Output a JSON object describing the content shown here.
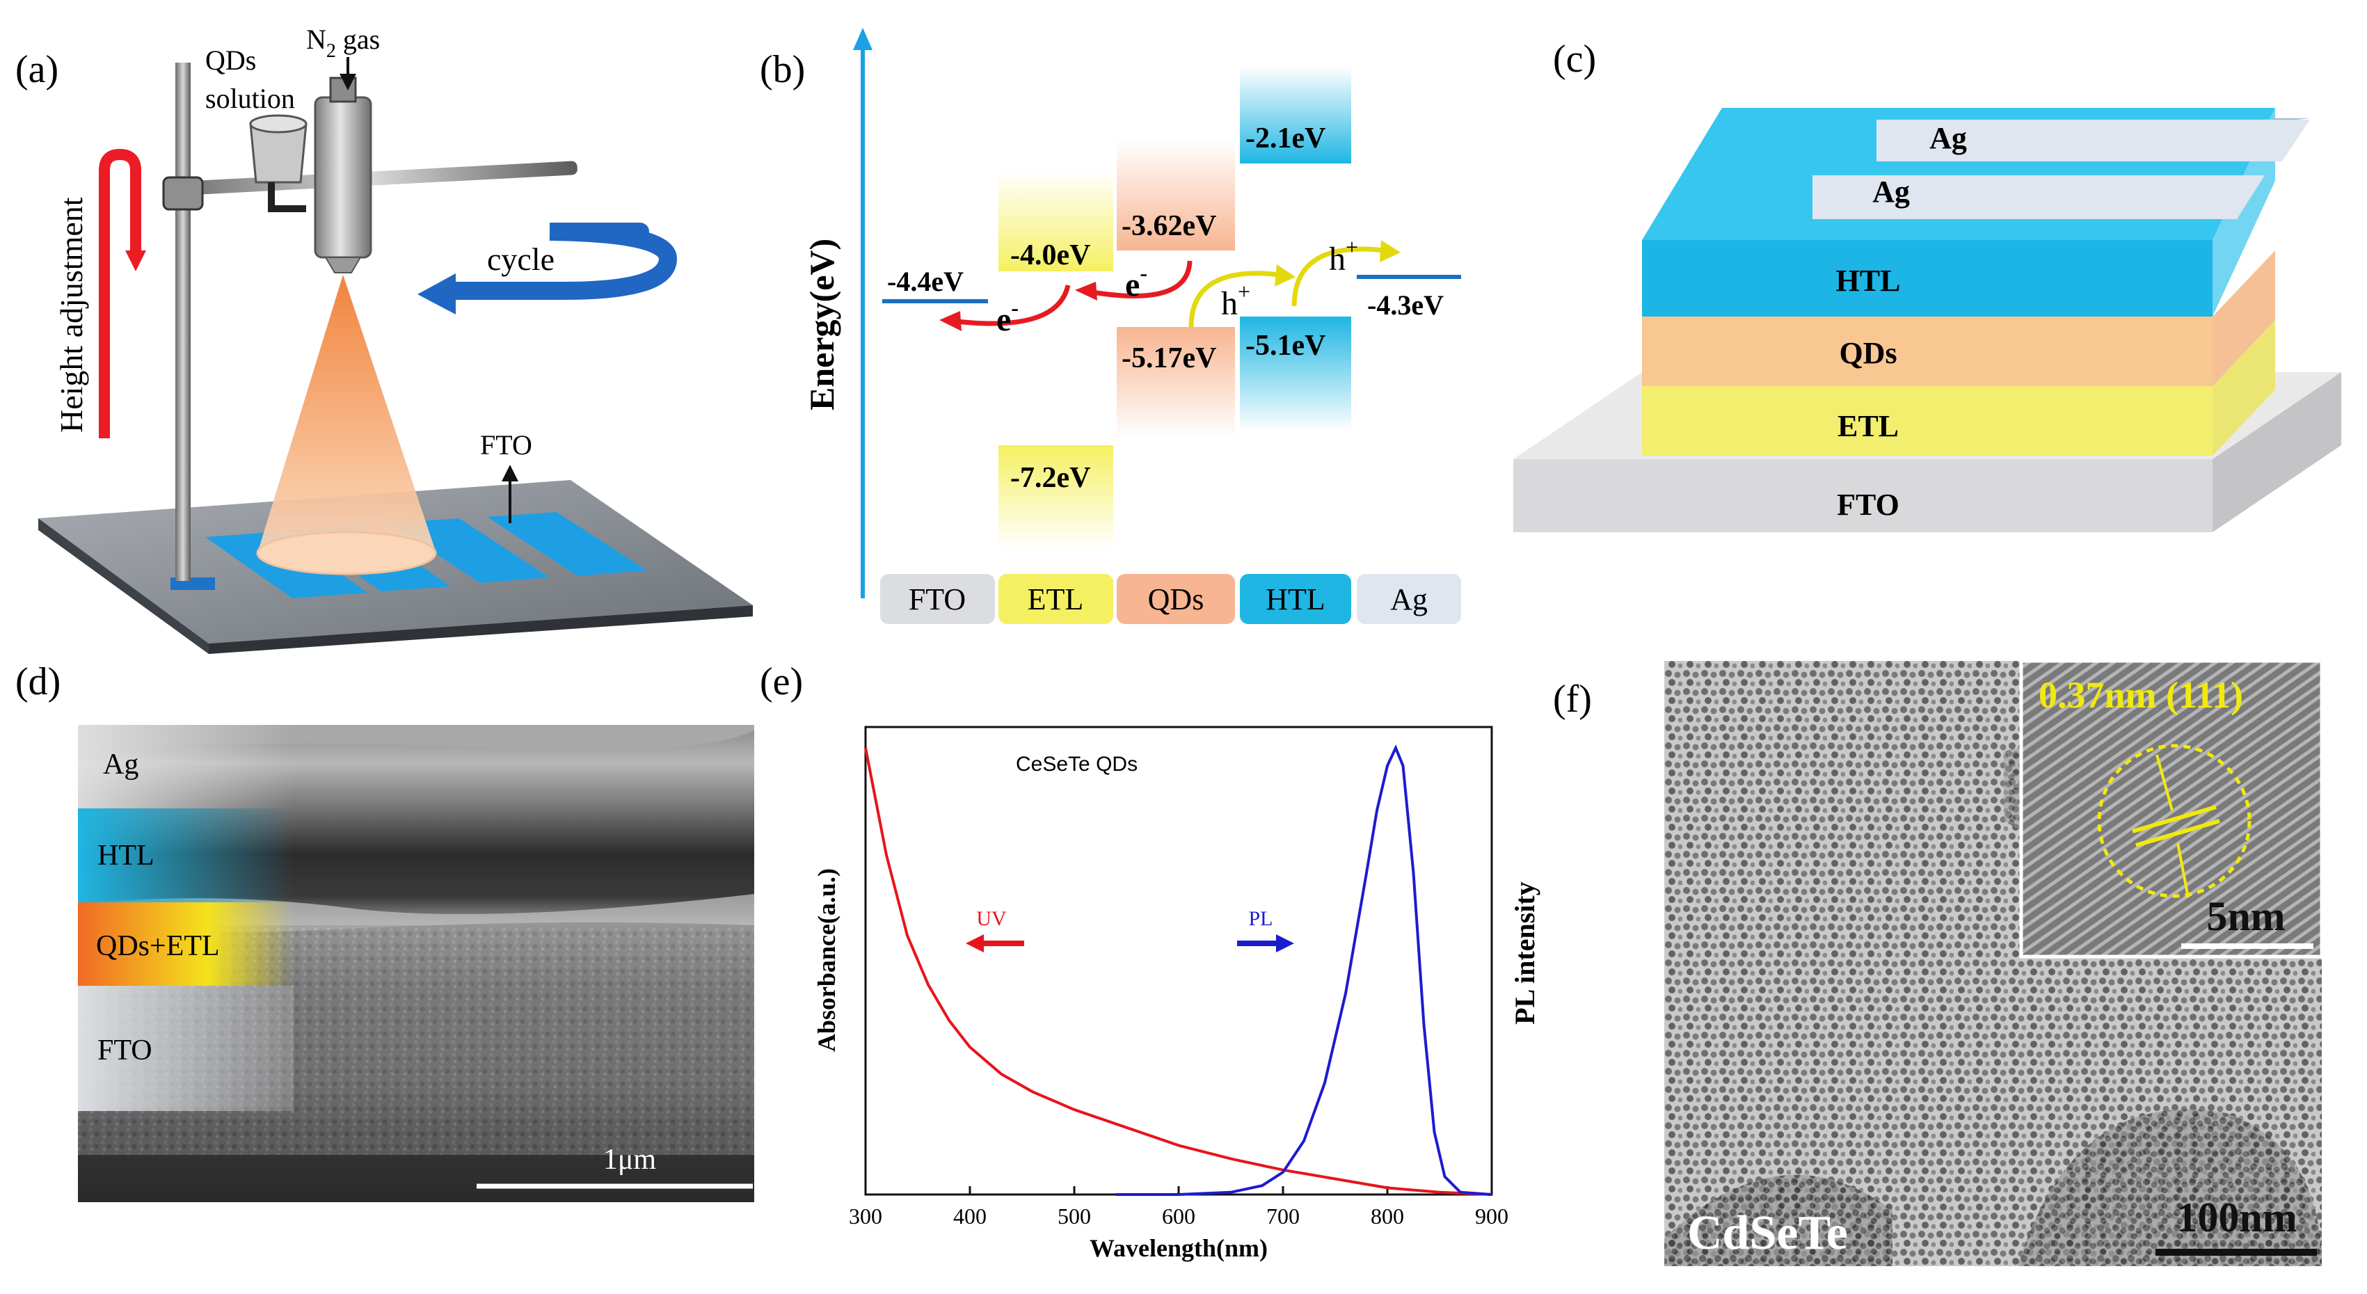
{
  "panels": {
    "a": {
      "tag": "(a)",
      "qds_line1": "QDs",
      "qds_line2": "solution",
      "n2": "N",
      "n2_sub": "2",
      "n2_rest": " gas",
      "cycle": "cycle",
      "height": "Height adjustment",
      "fto": "FTO"
    },
    "b": {
      "tag": "(b)",
      "ylabel": "Energy(eV)",
      "levels": {
        "fto": "-4.4eV",
        "etl_cb": "-4.0eV",
        "etl_vb": "-7.2eV",
        "qds_cb": "-3.62eV",
        "qds_vb": "-5.17eV",
        "htl_cb": "-2.1eV",
        "htl_vb": "-5.1eV",
        "ag": "-4.3eV"
      },
      "carriers": {
        "e": "e",
        "minus": "-",
        "h": "h",
        "plus": "+"
      },
      "columns": [
        "FTO",
        "ETL",
        "QDs",
        "HTL",
        "Ag"
      ]
    },
    "c": {
      "tag": "(c)",
      "layers": [
        "Ag",
        "Ag",
        "HTL",
        "QDs",
        "ETL",
        "FTO"
      ]
    },
    "d": {
      "tag": "(d)",
      "layers": [
        "Ag",
        "HTL",
        "QDs+ETL",
        "FTO"
      ],
      "scale": "1μm"
    },
    "e": {
      "tag": "(e)",
      "sample": "CeSeTe QDs",
      "uv": "UV",
      "pl": "PL"
    },
    "f": {
      "tag": "(f)",
      "inset_label": "0.37nm (111)",
      "inset_scale": "5nm",
      "main_label": "CdSeTe",
      "main_scale": "100nm"
    }
  },
  "colors": {
    "etl": "#f5f061",
    "qds": "#f7b591",
    "htl": "#1fb6e3",
    "fto": "#dcdde0",
    "ag": "#dfe6ef",
    "uv_curve": "#e8141b",
    "pl_curve": "#1c1ccf"
  },
  "chart_data": {
    "type": "line",
    "title": "CeSeTe QDs",
    "xlabel": "Wavelength(nm)",
    "ylabel": "Absorbance(a.u.)",
    "ylabel_right": "PL intensity",
    "xlim": [
      300,
      900
    ],
    "ylim": [
      0,
      1
    ],
    "x_ticks": [
      300,
      400,
      500,
      600,
      700,
      800,
      900
    ],
    "series": [
      {
        "name": "UV",
        "axis": "left",
        "x": [
          300,
          310,
          320,
          340,
          360,
          380,
          400,
          430,
          460,
          500,
          550,
          600,
          650,
          700,
          750,
          800,
          850,
          900
        ],
        "y": [
          1.0,
          0.88,
          0.76,
          0.58,
          0.47,
          0.39,
          0.33,
          0.27,
          0.23,
          0.19,
          0.15,
          0.11,
          0.08,
          0.055,
          0.035,
          0.015,
          0.005,
          0.0
        ]
      },
      {
        "name": "PL",
        "axis": "right",
        "x": [
          540,
          600,
          650,
          680,
          700,
          720,
          740,
          760,
          780,
          790,
          800,
          808,
          815,
          825,
          835,
          845,
          855,
          870,
          900
        ],
        "y": [
          0.0,
          0.0,
          0.005,
          0.02,
          0.05,
          0.12,
          0.25,
          0.45,
          0.72,
          0.86,
          0.96,
          1.0,
          0.96,
          0.72,
          0.38,
          0.14,
          0.04,
          0.005,
          0.0
        ]
      }
    ]
  }
}
